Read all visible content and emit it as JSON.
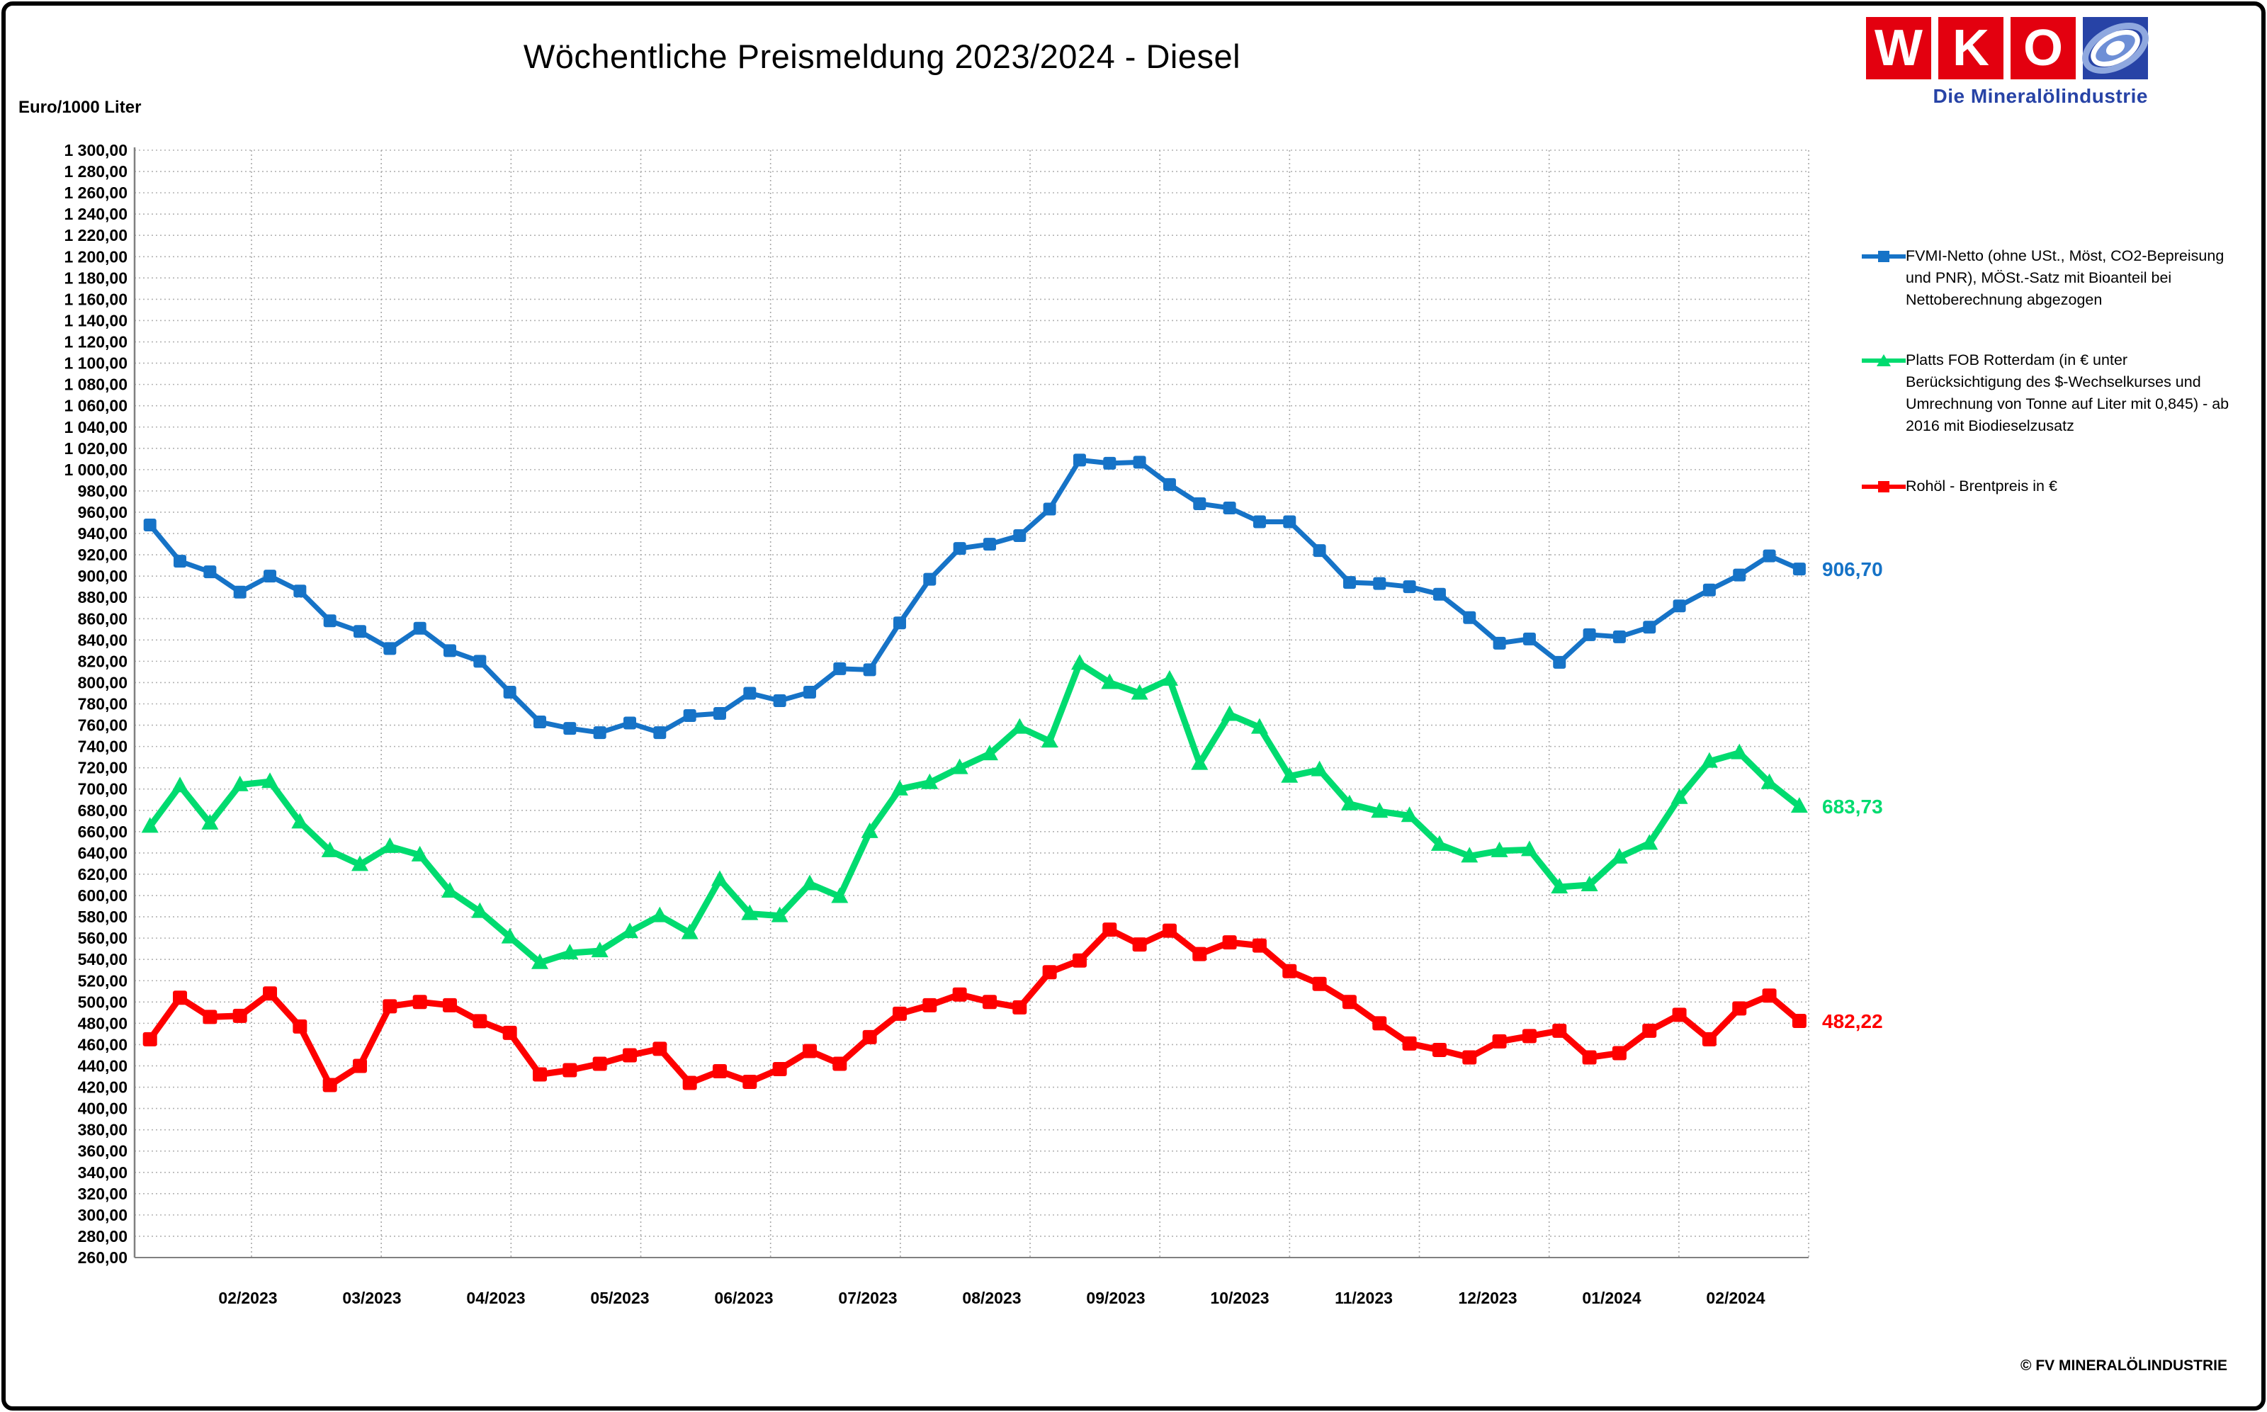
{
  "header": {
    "title": "Wöchentliche Preismeldung  2023/2024 - Diesel",
    "y_axis_unit": "Euro/1000 Liter"
  },
  "logo": {
    "letters": [
      "W",
      "K",
      "O"
    ],
    "subtitle": "Die Mineralölindustrie",
    "red": "#E3000F",
    "blue": "#2743A6"
  },
  "legend": {
    "items": [
      {
        "id": "fvmi",
        "label": "FVMI-Netto (ohne USt., Möst, CO2-Bepreisung und PNR), MÖSt.-Satz mit Bioanteil bei Nettoberechnung abgezogen",
        "color": "#1673C7",
        "marker": "square"
      },
      {
        "id": "platts",
        "label": "Platts FOB Rotterdam (in € unter Berücksichtigung des $-Wechselkurses und Umrechnung von Tonne auf Liter mit 0,845) - ab 2016 mit Biodieselzusatz",
        "color": "#00DB6F",
        "marker": "triangle"
      },
      {
        "id": "brent",
        "label": "Rohöl - Brentpreis in €",
        "color": "#FE0000",
        "marker": "square"
      }
    ]
  },
  "footer": {
    "copyright": "© FV MINERALÖLINDUSTRIE"
  },
  "chart_data": {
    "type": "line",
    "title": "Wöchentliche Preismeldung  2023/2024 - Diesel",
    "ylabel": "Euro/1000 Liter",
    "ylim": [
      260,
      1300
    ],
    "y_step": 20,
    "grid": true,
    "legend_position": "right",
    "x_labels": [
      "02/2023",
      "03/2023",
      "04/2023",
      "05/2023",
      "06/2023",
      "07/2023",
      "08/2023",
      "09/2023",
      "10/2023",
      "11/2023",
      "12/2023",
      "01/2024",
      "02/2024"
    ],
    "series": [
      {
        "name": "FVMI-Netto (ohne USt., Möst, CO2-Bepreisung und PNR), MÖSt.-Satz mit Bioanteil bei Nettoberechnung abgezogen",
        "color": "#1673C7",
        "marker": "square",
        "end_label": "906,70",
        "values": [
          948,
          914,
          904,
          885,
          900,
          886,
          858,
          848,
          832,
          851,
          830,
          820,
          791,
          763,
          757,
          753,
          762,
          753,
          769,
          771,
          790,
          783,
          791,
          813,
          812,
          856,
          897,
          926,
          930,
          938,
          963,
          1009,
          1006,
          1007,
          986,
          968,
          964,
          951,
          951,
          924,
          894,
          893,
          890,
          883,
          861,
          837,
          841,
          819,
          845,
          843,
          852,
          872,
          887,
          901,
          919,
          906.7
        ]
      },
      {
        "name": "Platts FOB Rotterdam (in € unter Berücksichtigung des $-Wechselkurses und Umrechnung von Tonne auf Liter mit 0,845) - ab 2016 mit Biodieselzusatz",
        "color": "#00DB6F",
        "marker": "triangle",
        "end_label": "683,73",
        "values": [
          665,
          703,
          668,
          704,
          707,
          669,
          642,
          629,
          646,
          638,
          604,
          585,
          561,
          537,
          546,
          548,
          566,
          581,
          565,
          615,
          583,
          581,
          611,
          599,
          660,
          700,
          706,
          720,
          733,
          758,
          745,
          818,
          800,
          790,
          803,
          724,
          770,
          758,
          712,
          718,
          686,
          679,
          675,
          648,
          637,
          642,
          643,
          608,
          610,
          636,
          649,
          692,
          726,
          734,
          706,
          683.73
        ]
      },
      {
        "name": "Rohöl - Brentpreis in €",
        "color": "#FE0000",
        "marker": "square",
        "end_label": "482,22",
        "values": [
          465,
          504,
          486,
          487,
          508,
          477,
          422,
          440,
          496,
          500,
          497,
          482,
          471,
          432,
          436,
          442,
          450,
          456,
          424,
          435,
          425,
          437,
          454,
          442,
          467,
          489,
          497,
          507,
          500,
          495,
          528,
          539,
          568,
          554,
          567,
          545,
          556,
          553,
          529,
          517,
          500,
          480,
          461,
          455,
          448,
          463,
          468,
          473,
          448,
          452,
          473,
          488,
          465,
          494,
          506,
          482.22
        ]
      }
    ]
  }
}
